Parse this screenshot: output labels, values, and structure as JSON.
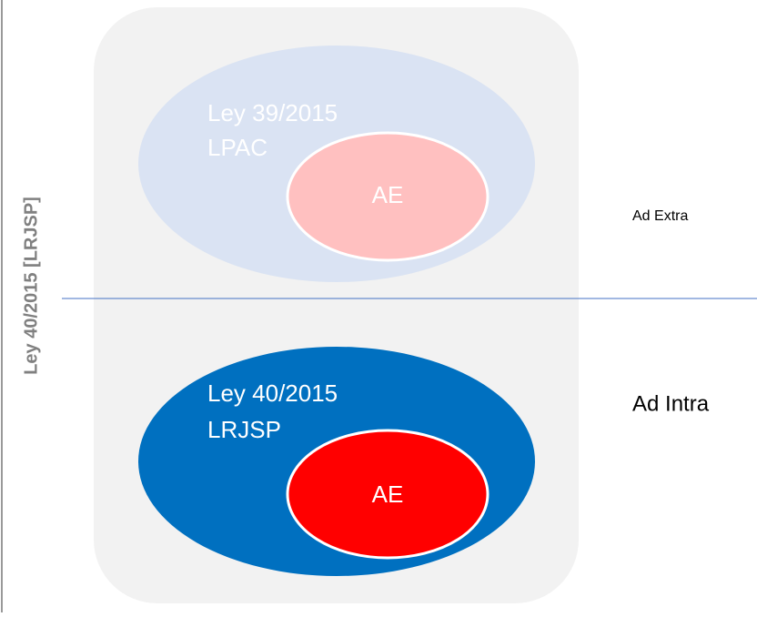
{
  "side_label": "Ley 40/2015 [LRJSP]",
  "top": {
    "outer_line1": "Ley  39/2015",
    "outer_line2": "LPAC",
    "inner": "AE",
    "side": "Ad Extra"
  },
  "bottom": {
    "outer_line1": "Ley 40/2015",
    "outer_line2": "LRJSP",
    "inner": "AE",
    "side": "Ad Intra"
  }
}
